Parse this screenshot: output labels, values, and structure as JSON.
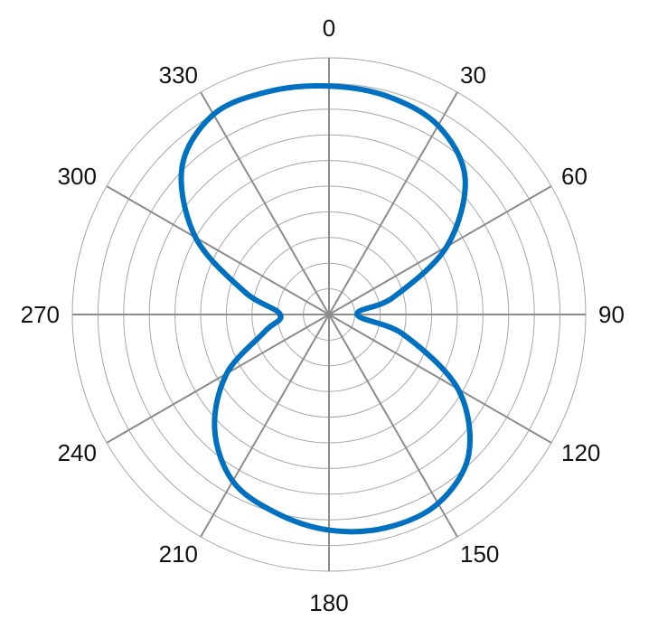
{
  "chart_data": {
    "type": "polar-line",
    "angle_unit": "degrees",
    "angle_direction": "clockwise",
    "zero_at": "top",
    "angular_tick_labels": [
      "0",
      "30",
      "60",
      "90",
      "120",
      "150",
      "180",
      "210",
      "240",
      "270",
      "300",
      "330"
    ],
    "radial_rings": 10,
    "radial_range": [
      0,
      10
    ],
    "grid": true,
    "legend": "none",
    "series": [
      {
        "color": "#0070C0",
        "theta": [
          0,
          15,
          30,
          45,
          60,
          75,
          90,
          105,
          120,
          135,
          150,
          165,
          180,
          195,
          210,
          225,
          240,
          255,
          270,
          285,
          300,
          315,
          330,
          345,
          360
        ],
        "r": [
          8.9,
          8.8,
          8.5,
          7.5,
          5.3,
          2.6,
          1.1,
          3.0,
          5.8,
          7.7,
          8.5,
          8.6,
          8.4,
          8.0,
          7.5,
          6.3,
          4.6,
          2.6,
          1.9,
          3.4,
          6.0,
          8.1,
          9.0,
          9.0,
          8.9
        ]
      }
    ]
  }
}
